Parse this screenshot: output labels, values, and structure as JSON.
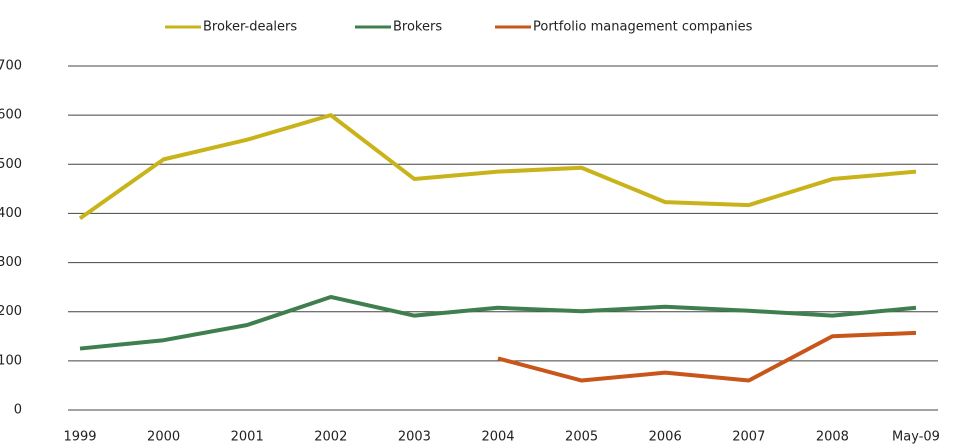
{
  "chart_data": {
    "type": "line",
    "categories": [
      "1999",
      "2000",
      "2001",
      "2002",
      "2003",
      "2004",
      "2005",
      "2006",
      "2007",
      "2008",
      "May-09"
    ],
    "series": [
      {
        "name": "Broker-dealers",
        "color": "#c9b31a",
        "values": [
          390,
          510,
          550,
          600,
          470,
          485,
          493,
          423,
          417,
          470,
          485
        ]
      },
      {
        "name": "Brokers",
        "color": "#3f7f4f",
        "values": [
          125,
          142,
          173,
          230,
          192,
          208,
          201,
          210,
          202,
          192,
          208
        ]
      },
      {
        "name": "Portfolio management companies",
        "color": "#c8561a",
        "values": [
          null,
          null,
          null,
          null,
          null,
          105,
          60,
          76,
          60,
          150,
          157
        ]
      }
    ],
    "ylim": [
      0,
      700
    ],
    "yticks": [
      0,
      100,
      200,
      300,
      400,
      500,
      600,
      700
    ],
    "grid": true,
    "legend": "top"
  }
}
